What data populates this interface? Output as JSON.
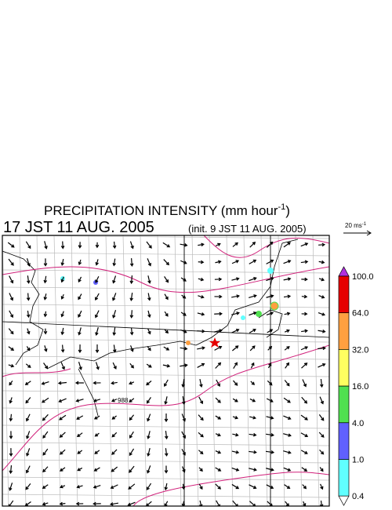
{
  "header": {
    "title": "PRECIPITATION INTENSITY (mm hour",
    "title_exponent": "-1",
    "title_close": ")",
    "valid_time": "17 JST 11 AUG. 2005",
    "init_time": "(init. 9 JST 11 AUG. 2005)"
  },
  "vector_scale": {
    "label": "20 ms",
    "exponent": "-1"
  },
  "contour_label": "988",
  "colorbar": {
    "labels": [
      "100.0",
      "64.0",
      "32.0",
      "16.0",
      "4.0",
      "1.0",
      "0.4"
    ],
    "colors": [
      "#e60000",
      "#ffa040",
      "#ffff60",
      "#50e050",
      "#6060ff",
      "#60ffff"
    ],
    "over_color": "#b030e0",
    "under_color": "#ffffff"
  }
}
